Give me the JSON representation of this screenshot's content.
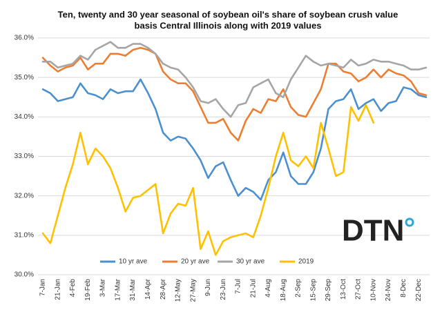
{
  "chart_data": {
    "type": "line",
    "title": "Ten, twenty and 30 year seasonal of soybean oil's share of soybean crush value",
    "subtitle": "basis Central Illinois along with 2019 values",
    "logo": "DTN",
    "categories": [
      "7-Jan",
      null,
      "21-Jan",
      null,
      "4-Feb",
      null,
      "19-Feb",
      null,
      "3-Mar",
      null,
      "17-Mar",
      null,
      "31-Mar",
      null,
      "14-Apr",
      null,
      "28-Apr",
      null,
      "12-May",
      null,
      "27-May",
      null,
      "9-Jun",
      null,
      "23-Jun",
      null,
      "7-Jul",
      null,
      "21-Jul",
      null,
      "4-Aug",
      null,
      "18-Aug",
      null,
      "2-Sep",
      null,
      "15-Sep",
      null,
      "29-Sep",
      null,
      "13-Oct",
      null,
      "27-Oct",
      null,
      "10-Nov",
      null,
      "24-Nov",
      null,
      "8-Dec",
      null,
      "22-Dec",
      null
    ],
    "series": [
      {
        "name": "10 yr ave",
        "color": "#4a8fcf",
        "values": [
          34.7,
          34.6,
          34.4,
          34.45,
          34.5,
          34.85,
          34.6,
          34.55,
          34.45,
          34.7,
          34.6,
          34.65,
          34.65,
          34.95,
          34.6,
          34.2,
          33.6,
          33.4,
          33.5,
          33.45,
          33.2,
          32.9,
          32.45,
          32.75,
          32.85,
          32.4,
          32.0,
          32.2,
          32.1,
          31.9,
          32.4,
          32.6,
          33.1,
          32.5,
          32.3,
          32.3,
          32.6,
          33.2,
          34.2,
          34.4,
          34.45,
          34.7,
          34.2,
          34.35,
          34.45,
          34.15,
          34.35,
          34.4,
          34.75,
          34.7,
          34.55,
          34.5
        ]
      },
      {
        "name": "20 yr ave",
        "color": "#ed7d31",
        "values": [
          35.5,
          35.3,
          35.15,
          35.25,
          35.3,
          35.5,
          35.2,
          35.35,
          35.35,
          35.6,
          35.6,
          35.55,
          35.7,
          35.75,
          35.7,
          35.6,
          35.15,
          34.95,
          34.85,
          34.85,
          34.65,
          34.25,
          33.85,
          33.85,
          33.95,
          33.6,
          33.4,
          33.9,
          34.2,
          34.1,
          34.45,
          34.4,
          34.7,
          34.25,
          34.05,
          34.0,
          34.35,
          34.7,
          35.35,
          35.35,
          35.15,
          35.1,
          34.9,
          35.0,
          35.2,
          35.0,
          35.2,
          35.1,
          35.05,
          34.9,
          34.6,
          34.55
        ]
      },
      {
        "name": "30 yr ave",
        "color": "#a5a5a5",
        "values": [
          35.4,
          35.4,
          35.25,
          35.3,
          35.35,
          35.55,
          35.45,
          35.7,
          35.8,
          35.9,
          35.75,
          35.75,
          35.85,
          35.85,
          35.75,
          35.6,
          35.35,
          35.25,
          35.2,
          35.0,
          34.75,
          34.4,
          34.35,
          34.45,
          34.2,
          34.0,
          34.3,
          34.35,
          34.75,
          34.85,
          34.95,
          34.6,
          34.5,
          34.95,
          35.25,
          35.55,
          35.4,
          35.3,
          35.35,
          35.3,
          35.25,
          35.45,
          35.3,
          35.35,
          35.45,
          35.4,
          35.4,
          35.35,
          35.3,
          35.2,
          35.2,
          35.25
        ]
      },
      {
        "name": "2019",
        "color": "#ffc000",
        "values": [
          31.05,
          30.8,
          31.5,
          32.2,
          32.8,
          33.6,
          32.8,
          33.2,
          33.0,
          32.7,
          32.2,
          31.6,
          31.95,
          32.0,
          32.15,
          32.3,
          31.05,
          31.55,
          31.8,
          31.75,
          32.2,
          30.65,
          31.1,
          30.5,
          30.85,
          30.95,
          31.0,
          31.05,
          30.95,
          31.5,
          32.2,
          33.0,
          33.6,
          32.9,
          32.75,
          33.0,
          32.7,
          33.85,
          33.2,
          32.5,
          32.6,
          34.25,
          33.9,
          34.3,
          33.85,
          null,
          null,
          null,
          null,
          null,
          null,
          null
        ]
      }
    ],
    "ylim": [
      30,
      36
    ],
    "yticks": [
      {
        "value": 30,
        "label": "30.0%"
      },
      {
        "value": 31,
        "label": "31.0%"
      },
      {
        "value": 32,
        "label": "32.0%"
      },
      {
        "value": 33,
        "label": "33.0%"
      },
      {
        "value": 34,
        "label": "34.0%"
      },
      {
        "value": 35,
        "label": "35.0%"
      },
      {
        "value": 36,
        "label": "36.0%"
      }
    ],
    "grid": true
  }
}
